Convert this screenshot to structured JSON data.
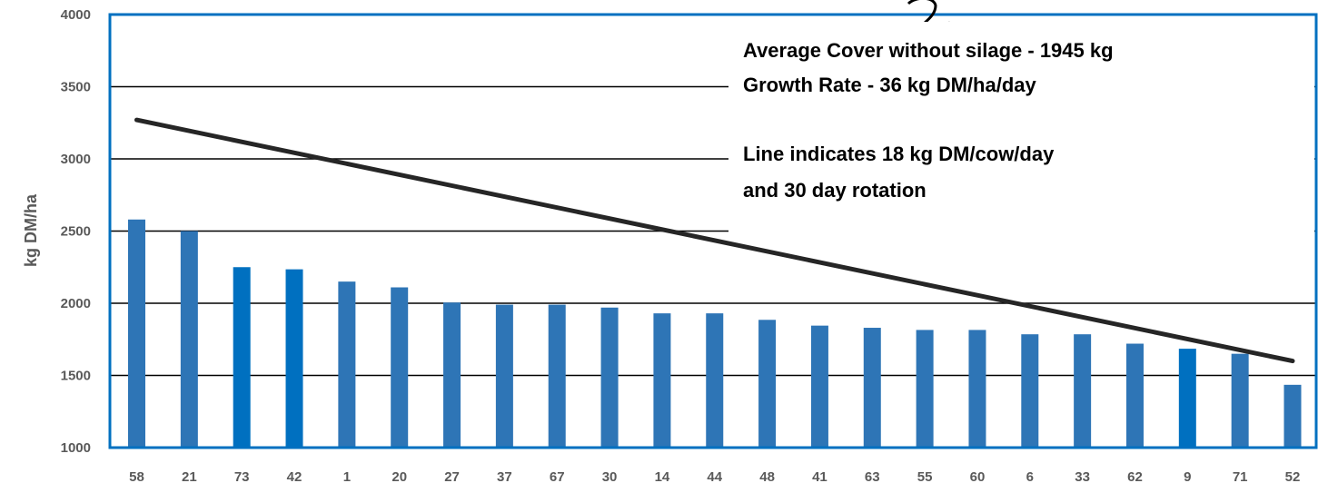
{
  "chart_data": {
    "type": "bar",
    "title": "",
    "xlabel": "",
    "ylabel": "kg DM/ha",
    "ylim": [
      1000,
      4000
    ],
    "yticks": [
      1000,
      1500,
      2000,
      2500,
      3000,
      3500,
      4000
    ],
    "grid": true,
    "legend": "none",
    "categories": [
      "58",
      "21",
      "73",
      "42",
      "1",
      "20",
      "27",
      "37",
      "67",
      "30",
      "14",
      "44",
      "48",
      "41",
      "63",
      "55",
      "60",
      "6",
      "33",
      "62",
      "9",
      "71",
      "52"
    ],
    "series": [
      {
        "values": [
          2580,
          2500,
          2250,
          2235,
          2150,
          2110,
          2005,
          1990,
          1990,
          1970,
          1930,
          1930,
          1885,
          1845,
          1830,
          1815,
          1815,
          1785,
          1785,
          1720,
          1685,
          1650,
          1435
        ],
        "colors": [
          "#2E75B6",
          "#2E75B6",
          "#0070C0",
          "#0070C0",
          "#2E75B6",
          "#2E75B6",
          "#2E75B6",
          "#2E75B6",
          "#2E75B6",
          "#2E75B6",
          "#2E75B6",
          "#2E75B6",
          "#2E75B6",
          "#2E75B6",
          "#2E75B6",
          "#2E75B6",
          "#2E75B6",
          "#2E75B6",
          "#2E75B6",
          "#2E75B6",
          "#0070C0",
          "#2E75B6",
          "#2E75B6"
        ]
      }
    ],
    "reference_line": {
      "start": 3270,
      "end": 1600,
      "color": "#262626"
    },
    "annotations": [
      "Average Cover without silage - 1945 kg",
      "Growth Rate -  36 kg DM/ha/day",
      "Line indicates 18 kg DM/cow/day",
      "and 30 day rotation"
    ],
    "frame_color": "#0070C0"
  }
}
